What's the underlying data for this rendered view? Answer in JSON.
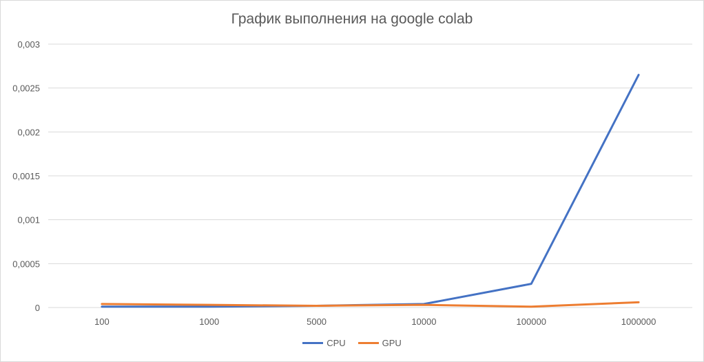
{
  "chart_data": {
    "type": "line",
    "title": "График выполнения на google  colab",
    "categories": [
      "100",
      "1000",
      "5000",
      "10000",
      "100000",
      "1000000"
    ],
    "series": [
      {
        "name": "CPU",
        "color": "#4472C4",
        "values": [
          1e-05,
          1e-05,
          2e-05,
          4e-05,
          0.00027,
          0.00265
        ]
      },
      {
        "name": "GPU",
        "color": "#ED7D31",
        "values": [
          4e-05,
          3e-05,
          2e-05,
          3e-05,
          1e-05,
          6e-05
        ]
      }
    ],
    "ylim": [
      0,
      0.003
    ],
    "yticks": [
      "0",
      "0,0005",
      "0,001",
      "0,0015",
      "0,002",
      "0,0025",
      "0,003"
    ],
    "grid": true,
    "legend_position": "bottom"
  }
}
